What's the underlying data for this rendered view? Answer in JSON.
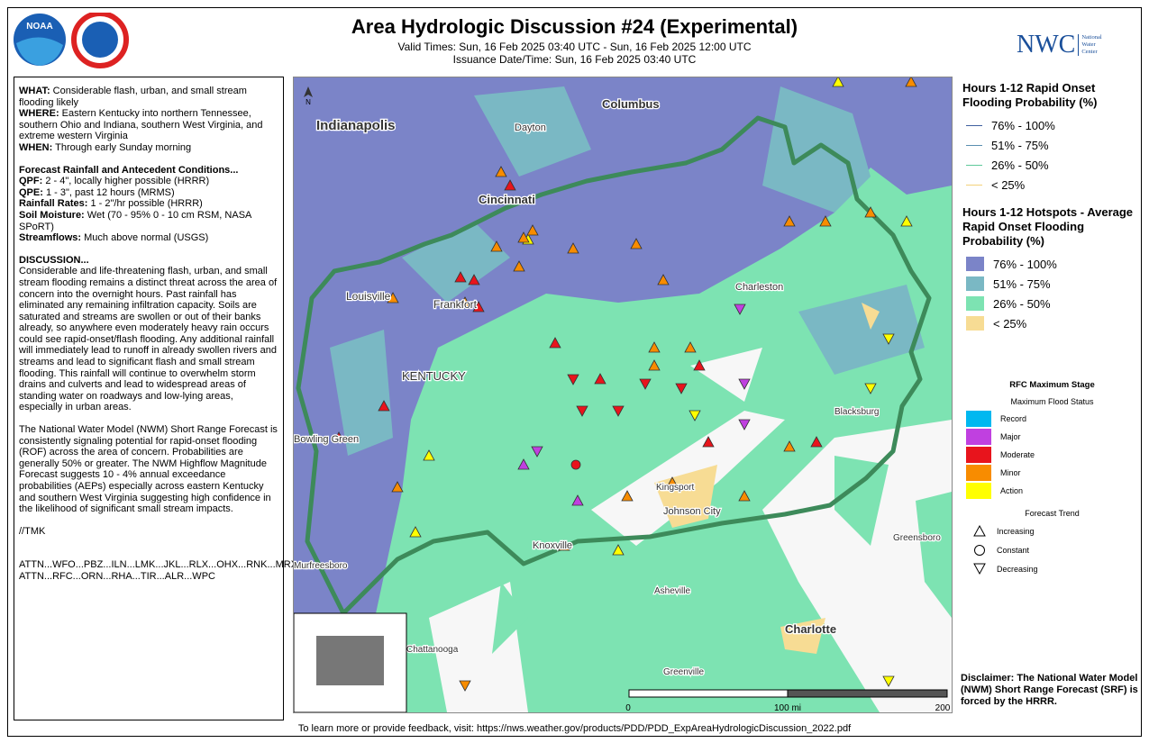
{
  "header": {
    "title": "Area Hydrologic Discussion #24 (Experimental)",
    "valid_times": "Valid Times: Sun, 16 Feb 2025 03:40 UTC - Sun, 16 Feb 2025 12:00 UTC",
    "issuance": "Issuance Date/Time: Sun, 16 Feb 2025 03:40 UTC",
    "nwc_abbr": "NWC",
    "nwc_name": [
      "National",
      "Water",
      "Center"
    ],
    "noaa": "NOAA"
  },
  "discussion": {
    "summary": [
      {
        "label": "WHAT:",
        "text": " Considerable flash, urban, and small stream flooding likely"
      },
      {
        "label": "WHERE:",
        "text": " Eastern Kentucky into northern Tennessee, southern Ohio and Indiana, southern West Virginia, and extreme western Virginia"
      },
      {
        "label": "WHEN:",
        "text": " Through early Sunday morning"
      }
    ],
    "conditions_heading": "Forecast Rainfall and Antecedent Conditions...",
    "conditions": [
      {
        "label": "QPF:",
        "text": " 2 - 4\", locally higher possible (HRRR)"
      },
      {
        "label": "QPE:",
        "text": " 1 - 3\", past 12 hours (MRMS)"
      },
      {
        "label": "Rainfall Rates:",
        "text": " 1 - 2\"/hr possible (HRRR)"
      },
      {
        "label": "Soil Moisture:",
        "text": " Wet (70 - 95% 0 - 10 cm RSM, NASA SPoRT)"
      },
      {
        "label": "Streamflows:",
        "text": " Much above normal (USGS)"
      }
    ],
    "discussion_heading": "DISCUSSION...",
    "paragraphs": [
      "Considerable and life-threatening flash, urban, and small stream flooding remains a distinct threat across the area of concern into the overnight hours. Past rainfall has eliminated any remaining infiltration capacity. Soils are saturated and streams are swollen or out of their banks already, so anywhere even moderately heavy rain occurs could see rapid-onset/flash flooding. Any additional rainfall will immediately lead to runoff in already swollen rivers and streams and lead to significant flash and small stream flooding. This rainfall will continue to overwhelm storm drains and culverts and lead to widespread areas of standing water on roadways and low-lying areas, especially in urban areas.",
      "The National Water Model (NWM) Short Range Forecast is consistently signaling potential for rapid-onset flooding (ROF) across the area of concern. Probabilities are generally 50% or greater. The NWM Highflow Magnitude Forecast suggests 10 - 4% annual exceedance probabilities (AEPs) especially across eastern Kentucky and southern West Virginia suggesting high confidence in the likelihood of significant small stream impacts."
    ],
    "signature": "//TMK",
    "attn": [
      " ATTN...WFO...PBZ...ILN...LMK...JKL...RLX...OHX...RNK...MRX...LWX",
      "ATTN...RFC...ORN...RHA...TIR...ALR...WPC"
    ]
  },
  "legend_rof": {
    "title": "Hours 1-12 Rapid Onset Flooding Probability (%)",
    "items": [
      {
        "label": "76% - 100%",
        "color": "#3f5f9f"
      },
      {
        "label": "51% - 75%",
        "color": "#5a8fb0"
      },
      {
        "label": "26% - 50%",
        "color": "#5ec99a"
      },
      {
        "label": "< 25%",
        "color": "#f3d27a"
      }
    ]
  },
  "legend_hotspots": {
    "title": "Hours 1-12 Hotspots - Average Rapid Onset Flooding Probability (%)",
    "items": [
      {
        "label": "76% - 100%",
        "color": "#7b84c8"
      },
      {
        "label": "51% - 75%",
        "color": "#7ab8c4"
      },
      {
        "label": "26% - 50%",
        "color": "#7de3b2"
      },
      {
        "label": "< 25%",
        "color": "#f7dc94"
      }
    ]
  },
  "legend_rfc": {
    "title": "RFC Maximum Stage",
    "subtitle": "Maximum Flood Status",
    "items": [
      {
        "label": "Record",
        "color": "#00b8f0"
      },
      {
        "label": "Major",
        "color": "#c040e0"
      },
      {
        "label": "Moderate",
        "color": "#e8141c"
      },
      {
        "label": "Minor",
        "color": "#f88c00"
      },
      {
        "label": "Action",
        "color": "#ffff00"
      }
    ],
    "trend_title": "Forecast Trend",
    "trends": [
      "Increasing",
      "Constant",
      "Decreasing"
    ]
  },
  "disclaimer": "Disclaimer: The National Water Model (NWM) Short Range Forecast (SRF) is forced by the HRRR.",
  "footer": "To learn more or provide feedback, visit: https://nws.weather.gov/products/PDD/PDD_ExpAreaHydrologicDiscussion_2022.pdf",
  "map": {
    "places": [
      "Indianapolis",
      "Columbus",
      "Dayton",
      "Cincinnati",
      "Louisville",
      "Frankfort",
      "Charleston",
      "KENTUCKY",
      "Bowling Green",
      "Blacksburg",
      "Kingsport",
      "Johnson City",
      "Knoxville",
      "Greensboro",
      "Asheville",
      "Charlotte",
      "Murfreesboro",
      "Chattanooga",
      "Greenville"
    ],
    "scale": [
      "0",
      "100 mi",
      "200"
    ],
    "north": "N"
  }
}
